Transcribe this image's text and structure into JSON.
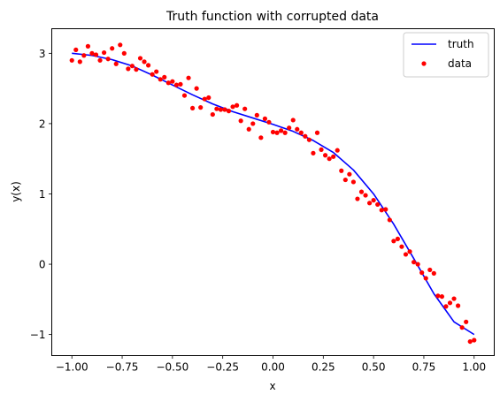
{
  "chart_data": {
    "type": "line",
    "title": "Truth function with corrupted data",
    "xlabel": "x",
    "ylabel": "y(x)",
    "xlim": [
      -1.1,
      1.1
    ],
    "ylim": [
      -1.3,
      3.35
    ],
    "xticks": [
      -1.0,
      -0.75,
      -0.5,
      -0.25,
      0.0,
      0.25,
      0.5,
      0.75,
      1.0
    ],
    "xtick_labels": [
      "−1.00",
      "−0.75",
      "−0.50",
      "−0.25",
      "0.00",
      "0.25",
      "0.50",
      "0.75",
      "1.00"
    ],
    "yticks": [
      -1,
      0,
      1,
      2,
      3
    ],
    "ytick_labels": [
      "−1",
      "0",
      "1",
      "2",
      "3"
    ],
    "grid": false,
    "legend_position": "top-right",
    "series": [
      {
        "name": "truth",
        "kind": "line",
        "color": "#0000ff",
        "x": [
          -1.0,
          -0.9,
          -0.8,
          -0.7,
          -0.6,
          -0.5,
          -0.4,
          -0.3,
          -0.2,
          -0.1,
          0.0,
          0.1,
          0.2,
          0.3,
          0.4,
          0.5,
          0.6,
          0.7,
          0.8,
          0.9,
          1.0
        ],
        "y": [
          3.0,
          2.97,
          2.91,
          2.82,
          2.69,
          2.55,
          2.41,
          2.28,
          2.17,
          2.08,
          1.99,
          1.89,
          1.76,
          1.59,
          1.34,
          1.0,
          0.57,
          0.08,
          -0.42,
          -0.82,
          -1.0
        ]
      },
      {
        "name": "data",
        "kind": "scatter",
        "color": "#ff0000",
        "x": [
          -1.0,
          -0.98,
          -0.96,
          -0.94,
          -0.92,
          -0.9,
          -0.88,
          -0.86,
          -0.84,
          -0.82,
          -0.8,
          -0.78,
          -0.76,
          -0.74,
          -0.72,
          -0.7,
          -0.68,
          -0.66,
          -0.64,
          -0.62,
          -0.6,
          -0.58,
          -0.56,
          -0.54,
          -0.52,
          -0.5,
          -0.48,
          -0.46,
          -0.44,
          -0.42,
          -0.4,
          -0.38,
          -0.36,
          -0.34,
          -0.32,
          -0.3,
          -0.28,
          -0.26,
          -0.24,
          -0.22,
          -0.2,
          -0.18,
          -0.16,
          -0.14,
          -0.12,
          -0.1,
          -0.08,
          -0.06,
          -0.04,
          -0.02,
          0.0,
          0.02,
          0.04,
          0.06,
          0.08,
          0.1,
          0.12,
          0.14,
          0.16,
          0.18,
          0.2,
          0.22,
          0.24,
          0.26,
          0.28,
          0.3,
          0.32,
          0.34,
          0.36,
          0.38,
          0.4,
          0.42,
          0.44,
          0.46,
          0.48,
          0.5,
          0.52,
          0.54,
          0.56,
          0.58,
          0.6,
          0.62,
          0.64,
          0.66,
          0.68,
          0.7,
          0.72,
          0.74,
          0.76,
          0.78,
          0.8,
          0.82,
          0.84,
          0.86,
          0.88,
          0.9,
          0.92,
          0.94,
          0.96,
          0.98,
          1.0
        ],
        "y": [
          2.9,
          3.05,
          2.88,
          2.97,
          3.1,
          3.0,
          2.98,
          2.9,
          3.01,
          2.92,
          3.07,
          2.85,
          3.12,
          3.0,
          2.78,
          2.82,
          2.77,
          2.93,
          2.88,
          2.83,
          2.7,
          2.74,
          2.63,
          2.66,
          2.58,
          2.6,
          2.55,
          2.56,
          2.4,
          2.65,
          2.22,
          2.5,
          2.23,
          2.35,
          2.37,
          2.13,
          2.21,
          2.2,
          2.2,
          2.18,
          2.24,
          2.26,
          2.04,
          2.21,
          1.92,
          2.0,
          2.12,
          1.8,
          2.07,
          2.02,
          1.88,
          1.87,
          1.9,
          1.87,
          1.94,
          2.05,
          1.92,
          1.87,
          1.82,
          1.77,
          1.58,
          1.87,
          1.63,
          1.55,
          1.5,
          1.53,
          1.62,
          1.33,
          1.2,
          1.28,
          1.17,
          0.93,
          1.03,
          0.98,
          0.87,
          0.91,
          0.85,
          0.77,
          0.78,
          0.63,
          0.33,
          0.36,
          0.25,
          0.14,
          0.18,
          0.03,
          0.0,
          -0.12,
          -0.2,
          -0.08,
          -0.13,
          -0.45,
          -0.46,
          -0.6,
          -0.55,
          -0.49,
          -0.59,
          -0.9,
          -0.82,
          -1.1,
          -1.08
        ]
      }
    ]
  }
}
